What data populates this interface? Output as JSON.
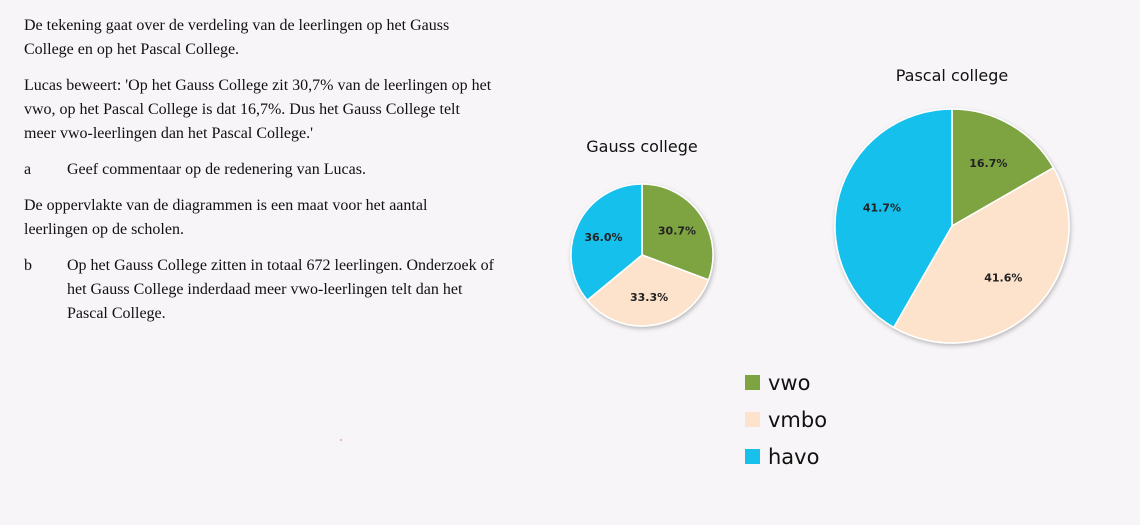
{
  "text": {
    "intro": "De tekening gaat over de verdeling van de leerlingen op het Gauss College en op het Pascal College.",
    "claim": "Lucas beweert: 'Op het Gauss College zit 30,7% van de leerlingen op het vwo, op het Pascal College is dat 16,7%. Dus het Gauss College telt meer vwo-leerlingen dan het Pascal College.'",
    "q_a_label": "a",
    "q_a_text": "Geef commentaar op de redenering van Lucas.",
    "area_note": "De oppervlakte van de diagrammen is een maat voor het aantal leerlingen op de scholen.",
    "q_b_label": "b",
    "q_b_text": "Op het Gauss College zitten in totaal 672 leerlingen. Onderzoek of het Gauss College inderdaad meer vwo-leerlingen telt dan het Pascal College."
  },
  "chart_data": [
    {
      "type": "pie",
      "title": "Gauss college",
      "categories": [
        "vwo",
        "vmbo",
        "havo"
      ],
      "values": [
        30.7,
        33.3,
        36.0
      ],
      "labels": [
        "30.7%",
        "33.3%",
        "36.0%"
      ],
      "colors": [
        "#7ea442",
        "#fde3cc",
        "#18c0ec"
      ]
    },
    {
      "type": "pie",
      "title": "Pascal college",
      "categories": [
        "vwo",
        "vmbo",
        "havo"
      ],
      "values": [
        16.7,
        41.6,
        41.7
      ],
      "labels": [
        "16.7%",
        "41.6%",
        "41.7%"
      ],
      "colors": [
        "#7ea442",
        "#fde3cc",
        "#18c0ec"
      ]
    }
  ],
  "legend": {
    "placement": "bottom-right",
    "items": [
      {
        "label": "vwo",
        "color": "#7ea442"
      },
      {
        "label": "vmbo",
        "color": "#fde3cc"
      },
      {
        "label": "havo",
        "color": "#18c0ec"
      }
    ]
  }
}
